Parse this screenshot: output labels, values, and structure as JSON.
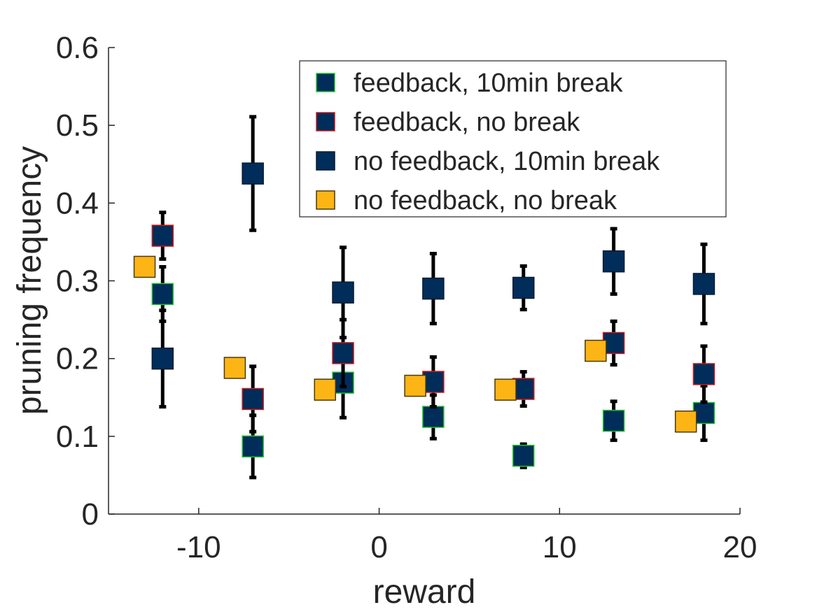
{
  "chart_data": {
    "type": "scatter",
    "title": "",
    "xlabel": "reward",
    "ylabel": "pruning frequency",
    "xlim": [
      -15,
      20
    ],
    "ylim": [
      0,
      0.6
    ],
    "xticks": [
      -10,
      0,
      10,
      20
    ],
    "xtick_labels": [
      "-10",
      "0",
      "10",
      "20"
    ],
    "yticks": [
      0,
      0.1,
      0.2,
      0.3,
      0.4,
      0.5,
      0.6
    ],
    "ytick_labels": [
      "0",
      "0.1",
      "0.2",
      "0.3",
      "0.4",
      "0.5",
      "0.6"
    ],
    "grid": false,
    "legend_position": "top-right",
    "series": [
      {
        "name": "feedback, 10min break",
        "fill": "#002d5a",
        "edge": "#22c22a",
        "x": [
          -12,
          -7,
          -2,
          3,
          8,
          13,
          18
        ],
        "y": [
          0.283,
          0.087,
          0.169,
          0.125,
          0.075,
          0.12,
          0.13
        ],
        "err": [
          0.035,
          0.04,
          0.045,
          0.028,
          0.015,
          0.025,
          0.035
        ]
      },
      {
        "name": "feedback, no break",
        "fill": "#002d5a",
        "edge": "#d01818",
        "x": [
          -12,
          -7,
          -2,
          3,
          8,
          13,
          18
        ],
        "y": [
          0.358,
          0.148,
          0.207,
          0.17,
          0.161,
          0.22,
          0.18
        ],
        "err": [
          0.03,
          0.042,
          0.043,
          0.032,
          0.022,
          0.028,
          0.036
        ]
      },
      {
        "name": "no feedback, 10min break",
        "fill": "#002d5a",
        "edge": "#0a1c30",
        "x": [
          -12,
          -7,
          -2,
          3,
          8,
          13,
          18
        ],
        "y": [
          0.2,
          0.438,
          0.285,
          0.29,
          0.291,
          0.325,
          0.296
        ],
        "err": [
          0.062,
          0.073,
          0.058,
          0.045,
          0.028,
          0.042,
          0.051
        ]
      },
      {
        "name": "no feedback, no break",
        "fill": "#fdb515",
        "edge": "#4a3a10",
        "x": [
          -13,
          -8,
          -3,
          2,
          7,
          12,
          17
        ],
        "y": [
          0.318,
          0.188,
          0.16,
          0.165,
          0.16,
          0.21,
          0.119
        ],
        "err": null
      }
    ]
  }
}
